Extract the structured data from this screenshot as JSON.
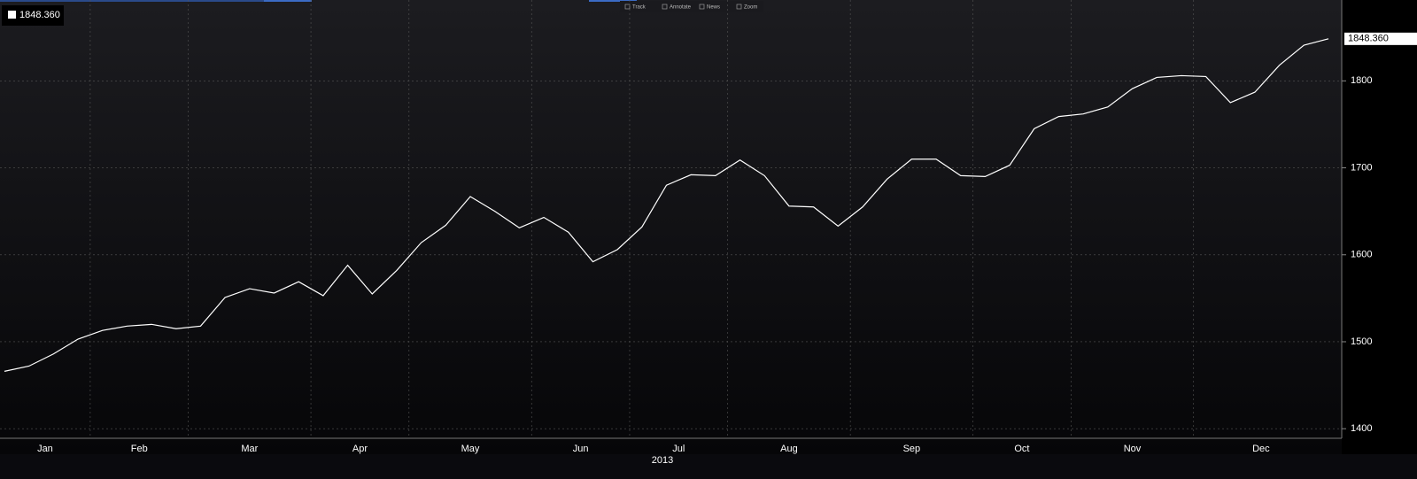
{
  "chart_data": {
    "type": "line",
    "toolbar": [
      "Track",
      "Annotate",
      "News",
      "Zoom"
    ],
    "xlabel": "2013",
    "categories": [
      "Jan",
      null,
      null,
      null,
      "Feb",
      null,
      null,
      null,
      "Mar",
      null,
      null,
      null,
      null,
      "Apr",
      null,
      null,
      null,
      "May",
      null,
      null,
      null,
      null,
      "Jun",
      null,
      null,
      null,
      "Jul",
      null,
      null,
      null,
      "Aug",
      null,
      null,
      null,
      null,
      "Sep",
      null,
      null,
      null,
      null,
      "Oct",
      null,
      null,
      null,
      "Nov",
      null,
      null,
      null,
      null,
      "Dec",
      null,
      null,
      null,
      null,
      null
    ],
    "series": [
      {
        "name": "1848.360",
        "color": "#ffffff",
        "values": [
          1466,
          1472,
          1486,
          1503,
          1513,
          1518,
          1520,
          1515,
          1518,
          1551,
          1561,
          1556,
          1569,
          1553,
          1588,
          1555,
          1582,
          1614,
          1634,
          1667,
          1650,
          1631,
          1643,
          1626,
          1592,
          1606,
          1632,
          1680,
          1692,
          1691,
          1709,
          1691,
          1656,
          1655,
          1633,
          1655,
          1687,
          1710,
          1710,
          1691,
          1690,
          1703,
          1745,
          1759,
          1762,
          1770,
          1791,
          1804,
          1806,
          1805,
          1775,
          1787,
          1818,
          1841,
          1848.36
        ]
      }
    ],
    "ylim": [
      1389,
      1893
    ],
    "yticks": [
      1400,
      1500,
      1600,
      1700,
      1800
    ],
    "grid": true
  }
}
